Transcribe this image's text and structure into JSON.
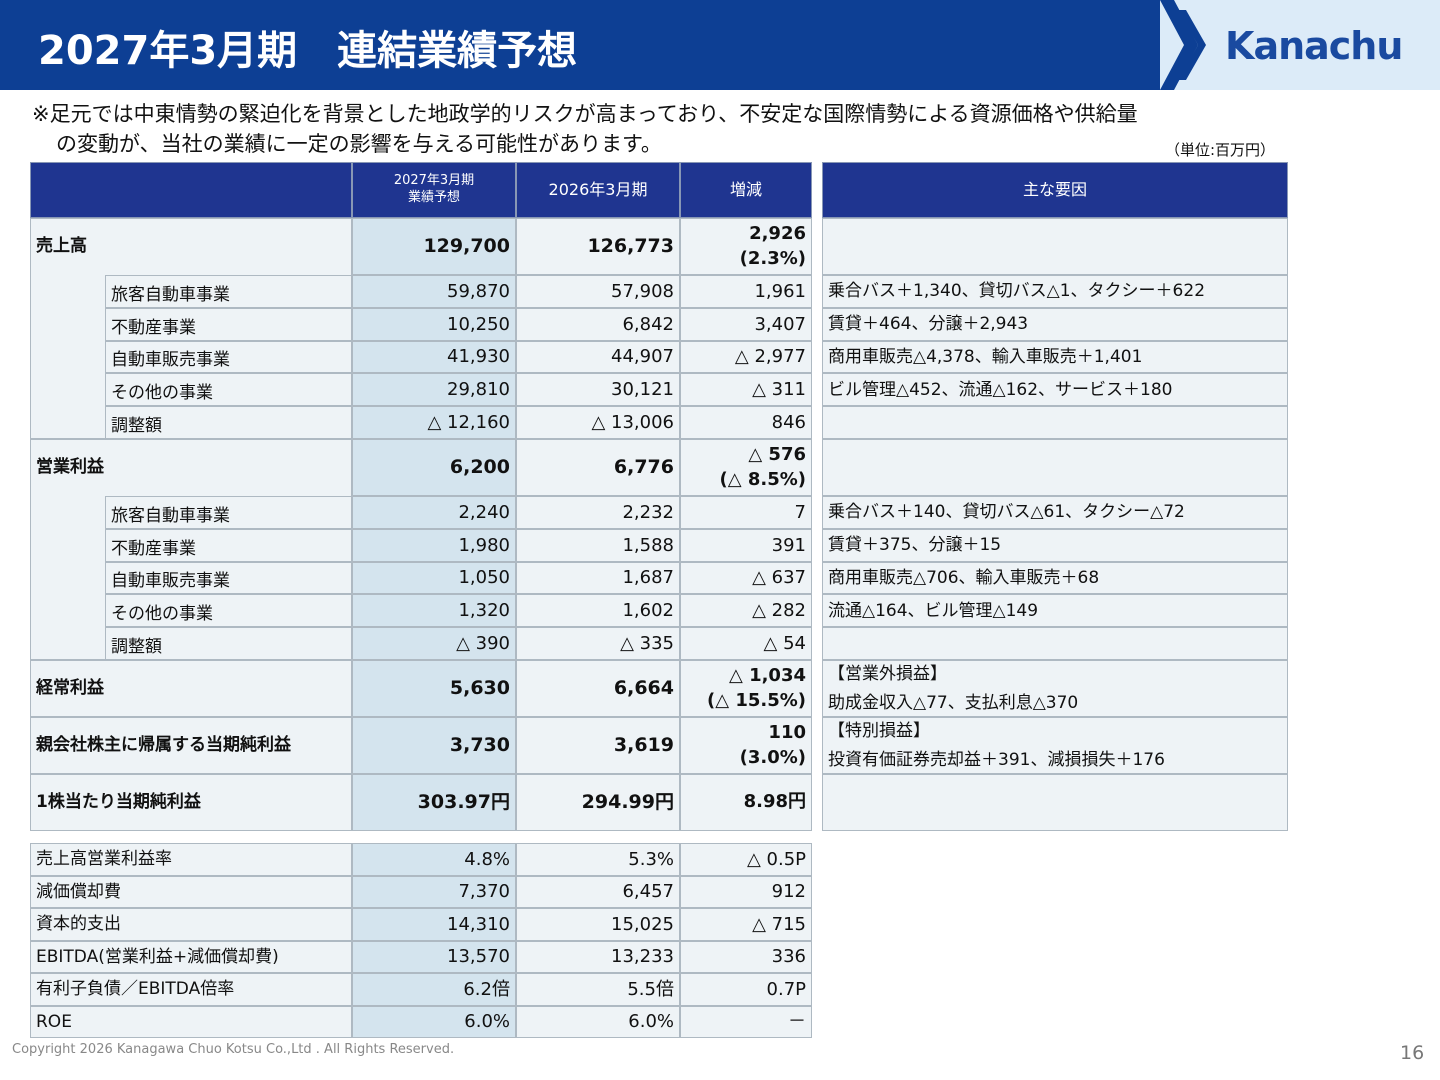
{
  "header": {
    "title": "2027年3月期　連結業績予想",
    "logo": "Kanachu"
  },
  "note": [
    "※足元では中東情勢の緊迫化を背景とした地政学的リスクが高まっており、不安定な国際情勢による資源価格や供給量",
    "の変動が、当社の業績に一定の影響を与える可能性があります。"
  ],
  "unit": "（単位:百万円）",
  "table": {
    "columns": [
      [
        "2027年3月期",
        "業績予想"
      ],
      "2026年3月期",
      "増減"
    ],
    "reason_header": "主な要因",
    "sections": [
      {
        "label": "売上高",
        "values": [
          "129,700",
          "126,773"
        ],
        "change": [
          "2,926",
          "(2.3%)"
        ],
        "subrows": [
          {
            "label": "旅客自動車事業",
            "values": [
              "59,870",
              "57,908",
              "1,961"
            ],
            "reason": "乗合バス＋1,340、貸切バス△1、タクシー＋622"
          },
          {
            "label": "不動産事業",
            "values": [
              "10,250",
              "6,842",
              "3,407"
            ],
            "reason": "賃貸＋464、分譲＋2,943"
          },
          {
            "label": "自動車販売事業",
            "values": [
              "41,930",
              "44,907",
              "△ 2,977"
            ],
            "reason": "商用車販売△4,378、輸入車販売＋1,401"
          },
          {
            "label": "その他の事業",
            "values": [
              "29,810",
              "30,121",
              "△ 311"
            ],
            "reason": "ビル管理△452、流通△162、サービス＋180"
          },
          {
            "label": "調整額",
            "values": [
              "△ 12,160",
              "△ 13,006",
              "846"
            ]
          }
        ]
      },
      {
        "label": "営業利益",
        "values": [
          "6,200",
          "6,776"
        ],
        "change": [
          "△ 576",
          "(△ 8.5%)"
        ],
        "subrows": [
          {
            "label": "旅客自動車事業",
            "values": [
              "2,240",
              "2,232",
              "7"
            ],
            "reason": "乗合バス＋140、貸切バス△61、タクシー△72"
          },
          {
            "label": "不動産事業",
            "values": [
              "1,980",
              "1,588",
              "391"
            ],
            "reason": "賃貸＋375、分譲＋15"
          },
          {
            "label": "自動車販売事業",
            "values": [
              "1,050",
              "1,687",
              "△ 637"
            ],
            "reason": "商用車販売△706、輸入車販売＋68"
          },
          {
            "label": "その他の事業",
            "values": [
              "1,320",
              "1,602",
              "△ 282"
            ],
            "reason": "流通△164、ビル管理△149"
          },
          {
            "label": "調整額",
            "values": [
              "△ 390",
              "△ 335",
              "△ 54"
            ]
          }
        ]
      },
      {
        "label": "経常利益",
        "values": [
          "5,630",
          "6,664"
        ],
        "change": [
          "△ 1,034",
          "(△ 15.5%)"
        ],
        "reasons": [
          "【営業外損益】",
          "助成金収入△77、支払利息△370"
        ]
      },
      {
        "label": "親会社株主に帰属する当期純利益",
        "values": [
          "3,730",
          "3,619"
        ],
        "change": [
          "110",
          "(3.0%)"
        ],
        "reasons": [
          "【特別損益】",
          "投資有価証券売却益＋391、減損損失＋176"
        ]
      },
      {
        "label": "1株当たり当期純利益",
        "values": [
          "303.97円",
          "294.99円"
        ],
        "change": [
          "8.98円"
        ]
      }
    ]
  },
  "indicators": [
    {
      "label": "売上高営業利益率",
      "values": [
        "4.8%",
        "5.3%",
        "△ 0.5P"
      ]
    },
    {
      "label": "減価償却費",
      "values": [
        "7,370",
        "6,457",
        "912"
      ]
    },
    {
      "label": "資本的支出",
      "values": [
        "14,310",
        "15,025",
        "△ 715"
      ]
    },
    {
      "label": "EBITDA(営業利益+減価償却費)",
      "values": [
        "13,570",
        "13,233",
        "336"
      ]
    },
    {
      "label": "有利子負債／EBITDA倍率",
      "values": [
        "6.2倍",
        "5.5倍",
        "0.7P"
      ]
    },
    {
      "label": "ROE",
      "values": [
        "6.0%",
        "6.0%",
        "－"
      ]
    }
  ],
  "footer": {
    "copyright": "Copyright 2026 Kanagawa Chuo Kotsu Co.,Ltd . All Rights Reserved.",
    "page": "16"
  }
}
